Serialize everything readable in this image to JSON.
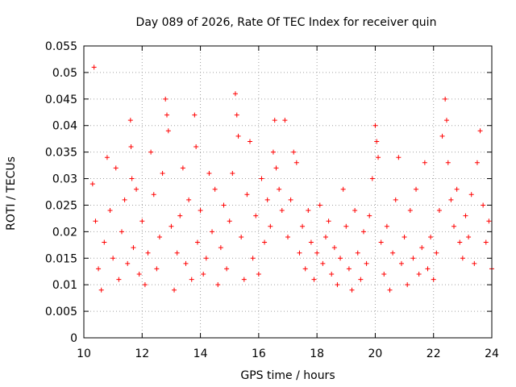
{
  "chart_data": {
    "type": "scatter",
    "title": "Day 089 of 2026, Rate Of TEC Index for receiver quin",
    "xlabel": "GPS time / hours",
    "ylabel": "ROTI / TECUs",
    "xlim": [
      10,
      24
    ],
    "ylim": [
      0,
      0.055
    ],
    "x_ticks": [
      10,
      12,
      14,
      16,
      18,
      20,
      22,
      24
    ],
    "y_ticks": [
      0,
      0.005,
      0.01,
      0.015,
      0.02,
      0.025,
      0.03,
      0.035,
      0.04,
      0.045,
      0.05,
      0.055
    ],
    "x_tick_labels": [
      "10",
      "12",
      "14",
      "16",
      "18",
      "20",
      "22",
      "24"
    ],
    "y_tick_labels": [
      "0",
      "0.005",
      "0.01",
      "0.015",
      "0.02",
      "0.025",
      "0.03",
      "0.035",
      "0.04",
      "0.045",
      "0.05",
      "0.055"
    ],
    "grid": true,
    "marker": "+",
    "color": "#ff0000",
    "series": [
      {
        "name": "ROTI",
        "x": [
          10.3,
          10.35,
          10.4,
          10.5,
          10.6,
          10.7,
          10.8,
          10.9,
          11.0,
          11.1,
          11.2,
          11.3,
          11.4,
          11.5,
          11.6,
          11.62,
          11.65,
          11.7,
          11.8,
          11.9,
          12.0,
          12.1,
          12.2,
          12.3,
          12.4,
          12.5,
          12.6,
          12.7,
          12.8,
          12.85,
          12.9,
          13.0,
          13.1,
          13.2,
          13.3,
          13.4,
          13.5,
          13.6,
          13.7,
          13.8,
          13.85,
          13.9,
          14.0,
          14.1,
          14.2,
          14.3,
          14.4,
          14.5,
          14.6,
          14.7,
          14.8,
          14.9,
          15.0,
          15.1,
          15.2,
          15.25,
          15.3,
          15.4,
          15.5,
          15.6,
          15.7,
          15.8,
          15.9,
          16.0,
          16.1,
          16.2,
          16.3,
          16.4,
          16.5,
          16.55,
          16.6,
          16.7,
          16.8,
          16.9,
          17.0,
          17.1,
          17.2,
          17.3,
          17.4,
          17.5,
          17.6,
          17.7,
          17.8,
          17.9,
          18.0,
          18.1,
          18.2,
          18.3,
          18.4,
          18.5,
          18.6,
          18.7,
          18.8,
          18.9,
          19.0,
          19.1,
          19.2,
          19.3,
          19.4,
          19.5,
          19.6,
          19.7,
          19.8,
          19.9,
          20.0,
          20.05,
          20.1,
          20.2,
          20.3,
          20.4,
          20.5,
          20.6,
          20.7,
          20.8,
          20.9,
          21.0,
          21.1,
          21.2,
          21.3,
          21.4,
          21.5,
          21.6,
          21.7,
          21.8,
          21.9,
          22.0,
          22.1,
          22.2,
          22.3,
          22.4,
          22.45,
          22.5,
          22.6,
          22.7,
          22.8,
          22.9,
          23.0,
          23.1,
          23.2,
          23.3,
          23.4,
          23.5,
          23.6,
          23.7,
          23.8,
          23.9,
          24.0
        ],
        "y": [
          0.029,
          0.051,
          0.022,
          0.013,
          0.009,
          0.018,
          0.034,
          0.024,
          0.015,
          0.032,
          0.011,
          0.02,
          0.026,
          0.014,
          0.041,
          0.036,
          0.03,
          0.017,
          0.028,
          0.012,
          0.022,
          0.01,
          0.016,
          0.035,
          0.027,
          0.013,
          0.019,
          0.031,
          0.045,
          0.042,
          0.039,
          0.021,
          0.009,
          0.016,
          0.023,
          0.032,
          0.014,
          0.026,
          0.011,
          0.042,
          0.036,
          0.018,
          0.024,
          0.012,
          0.015,
          0.031,
          0.02,
          0.028,
          0.01,
          0.017,
          0.025,
          0.013,
          0.022,
          0.031,
          0.046,
          0.042,
          0.038,
          0.019,
          0.011,
          0.027,
          0.037,
          0.015,
          0.023,
          0.012,
          0.03,
          0.018,
          0.026,
          0.021,
          0.035,
          0.041,
          0.032,
          0.028,
          0.024,
          0.041,
          0.019,
          0.026,
          0.035,
          0.033,
          0.016,
          0.021,
          0.013,
          0.024,
          0.018,
          0.011,
          0.016,
          0.025,
          0.014,
          0.019,
          0.022,
          0.012,
          0.017,
          0.01,
          0.015,
          0.028,
          0.021,
          0.013,
          0.009,
          0.024,
          0.016,
          0.011,
          0.02,
          0.014,
          0.023,
          0.03,
          0.04,
          0.037,
          0.034,
          0.018,
          0.012,
          0.021,
          0.009,
          0.016,
          0.026,
          0.034,
          0.014,
          0.019,
          0.01,
          0.024,
          0.015,
          0.028,
          0.012,
          0.017,
          0.033,
          0.013,
          0.019,
          0.011,
          0.016,
          0.024,
          0.038,
          0.045,
          0.041,
          0.033,
          0.026,
          0.021,
          0.028,
          0.018,
          0.015,
          0.023,
          0.019,
          0.027,
          0.014,
          0.033,
          0.039,
          0.025,
          0.018,
          0.022,
          0.013
        ]
      }
    ]
  }
}
